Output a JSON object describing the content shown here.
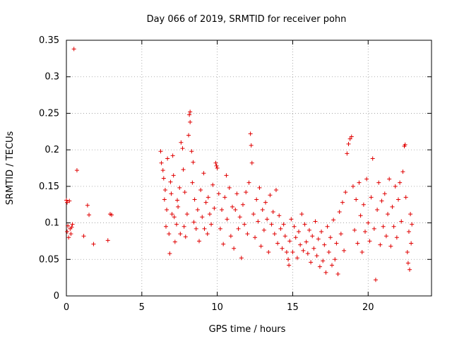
{
  "chart_data": {
    "type": "scatter",
    "title": "Day 066 of 2019, SRMTID for receiver pohn",
    "xlabel": "GPS time / hours",
    "ylabel": "SRMTID / TECUs",
    "xlim": [
      0,
      24.2
    ],
    "ylim": [
      0,
      0.35
    ],
    "x_ticks": [
      0,
      5,
      10,
      15,
      20
    ],
    "x_tick_labels": [
      "0",
      "5",
      "10",
      "15",
      "20"
    ],
    "y_ticks": [
      0,
      0.05,
      0.1,
      0.15,
      0.2,
      0.25,
      0.3,
      0.35
    ],
    "y_tick_labels": [
      "0",
      "0.05",
      "0.1",
      "0.15",
      "0.2",
      "0.25",
      "0.3",
      "0.35"
    ],
    "grid": true,
    "marker": "+",
    "color": "#e00000",
    "series": [
      {
        "name": "SRMTID",
        "points": [
          [
            0.0,
            0.131
          ],
          [
            0.05,
            0.128
          ],
          [
            0.05,
            0.088
          ],
          [
            0.1,
            0.096
          ],
          [
            0.15,
            0.08
          ],
          [
            0.2,
            0.13
          ],
          [
            0.25,
            0.092
          ],
          [
            0.3,
            0.085
          ],
          [
            0.35,
            0.094
          ],
          [
            0.4,
            0.098
          ],
          [
            0.5,
            0.338
          ],
          [
            0.7,
            0.172
          ],
          [
            1.15,
            0.082
          ],
          [
            1.4,
            0.124
          ],
          [
            1.5,
            0.111
          ],
          [
            1.8,
            0.071
          ],
          [
            2.75,
            0.076
          ],
          [
            2.9,
            0.112
          ],
          [
            3.0,
            0.111
          ],
          [
            6.25,
            0.198
          ],
          [
            6.3,
            0.182
          ],
          [
            6.4,
            0.172
          ],
          [
            6.45,
            0.161
          ],
          [
            6.5,
            0.132
          ],
          [
            6.55,
            0.145
          ],
          [
            6.6,
            0.095
          ],
          [
            6.65,
            0.118
          ],
          [
            6.7,
            0.188
          ],
          [
            6.8,
            0.085
          ],
          [
            6.85,
            0.058
          ],
          [
            6.9,
            0.156
          ],
          [
            6.95,
            0.14
          ],
          [
            7.0,
            0.112
          ],
          [
            7.05,
            0.192
          ],
          [
            7.1,
            0.165
          ],
          [
            7.15,
            0.108
          ],
          [
            7.2,
            0.074
          ],
          [
            7.3,
            0.098
          ],
          [
            7.35,
            0.131
          ],
          [
            7.4,
            0.122
          ],
          [
            7.5,
            0.148
          ],
          [
            7.55,
            0.085
          ],
          [
            7.6,
            0.21
          ],
          [
            7.7,
            0.202
          ],
          [
            7.75,
            0.173
          ],
          [
            7.8,
            0.095
          ],
          [
            7.85,
            0.142
          ],
          [
            7.9,
            0.081
          ],
          [
            8.0,
            0.112
          ],
          [
            8.1,
            0.22
          ],
          [
            8.15,
            0.248
          ],
          [
            8.2,
            0.238
          ],
          [
            8.2,
            0.252
          ],
          [
            8.3,
            0.198
          ],
          [
            8.35,
            0.155
          ],
          [
            8.4,
            0.183
          ],
          [
            8.45,
            0.101
          ],
          [
            8.5,
            0.132
          ],
          [
            8.6,
            0.092
          ],
          [
            8.7,
            0.118
          ],
          [
            8.8,
            0.075
          ],
          [
            8.9,
            0.145
          ],
          [
            9.0,
            0.108
          ],
          [
            9.1,
            0.168
          ],
          [
            9.15,
            0.092
          ],
          [
            9.25,
            0.128
          ],
          [
            9.35,
            0.085
          ],
          [
            9.4,
            0.135
          ],
          [
            9.5,
            0.112
          ],
          [
            9.6,
            0.098
          ],
          [
            9.7,
            0.152
          ],
          [
            9.8,
            0.12
          ],
          [
            9.9,
            0.182
          ],
          [
            9.95,
            0.178
          ],
          [
            10.0,
            0.175
          ],
          [
            10.1,
            0.14
          ],
          [
            10.2,
            0.092
          ],
          [
            10.3,
            0.118
          ],
          [
            10.4,
            0.071
          ],
          [
            10.5,
            0.135
          ],
          [
            10.6,
            0.165
          ],
          [
            10.65,
            0.105
          ],
          [
            10.8,
            0.148
          ],
          [
            10.9,
            0.082
          ],
          [
            11.0,
            0.122
          ],
          [
            11.1,
            0.065
          ],
          [
            11.2,
            0.118
          ],
          [
            11.3,
            0.14
          ],
          [
            11.4,
            0.092
          ],
          [
            11.5,
            0.108
          ],
          [
            11.6,
            0.052
          ],
          [
            11.7,
            0.125
          ],
          [
            11.8,
            0.098
          ],
          [
            11.9,
            0.142
          ],
          [
            12.0,
            0.085
          ],
          [
            12.1,
            0.155
          ],
          [
            12.2,
            0.222
          ],
          [
            12.25,
            0.206
          ],
          [
            12.3,
            0.182
          ],
          [
            12.4,
            0.112
          ],
          [
            12.5,
            0.08
          ],
          [
            12.6,
            0.132
          ],
          [
            12.7,
            0.102
          ],
          [
            12.8,
            0.148
          ],
          [
            12.9,
            0.068
          ],
          [
            13.0,
            0.118
          ],
          [
            13.1,
            0.09
          ],
          [
            13.2,
            0.128
          ],
          [
            13.3,
            0.105
          ],
          [
            13.4,
            0.06
          ],
          [
            13.5,
            0.138
          ],
          [
            13.6,
            0.098
          ],
          [
            13.7,
            0.115
          ],
          [
            13.8,
            0.085
          ],
          [
            13.9,
            0.145
          ],
          [
            14.0,
            0.072
          ],
          [
            14.1,
            0.11
          ],
          [
            14.2,
            0.092
          ],
          [
            14.3,
            0.065
          ],
          [
            14.4,
            0.098
          ],
          [
            14.5,
            0.082
          ],
          [
            14.6,
            0.06
          ],
          [
            14.7,
            0.05
          ],
          [
            14.75,
            0.042
          ],
          [
            14.8,
            0.075
          ],
          [
            14.9,
            0.105
          ],
          [
            15.0,
            0.06
          ],
          [
            15.1,
            0.095
          ],
          [
            15.2,
            0.08
          ],
          [
            15.3,
            0.052
          ],
          [
            15.4,
            0.088
          ],
          [
            15.5,
            0.07
          ],
          [
            15.6,
            0.112
          ],
          [
            15.7,
            0.062
          ],
          [
            15.8,
            0.098
          ],
          [
            15.9,
            0.074
          ],
          [
            16.0,
            0.058
          ],
          [
            16.1,
            0.09
          ],
          [
            16.2,
            0.046
          ],
          [
            16.3,
            0.082
          ],
          [
            16.4,
            0.065
          ],
          [
            16.5,
            0.102
          ],
          [
            16.6,
            0.055
          ],
          [
            16.7,
            0.078
          ],
          [
            16.8,
            0.04
          ],
          [
            16.9,
            0.088
          ],
          [
            17.0,
            0.048
          ],
          [
            17.1,
            0.07
          ],
          [
            17.2,
            0.032
          ],
          [
            17.3,
            0.095
          ],
          [
            17.4,
            0.06
          ],
          [
            17.5,
            0.08
          ],
          [
            17.6,
            0.042
          ],
          [
            17.7,
            0.104
          ],
          [
            17.8,
            0.05
          ],
          [
            17.9,
            0.072
          ],
          [
            18.0,
            0.03
          ],
          [
            18.1,
            0.115
          ],
          [
            18.2,
            0.085
          ],
          [
            18.3,
            0.128
          ],
          [
            18.4,
            0.062
          ],
          [
            18.5,
            0.142
          ],
          [
            18.6,
            0.195
          ],
          [
            18.7,
            0.208
          ],
          [
            18.8,
            0.215
          ],
          [
            18.9,
            0.218
          ],
          [
            19.0,
            0.15
          ],
          [
            19.1,
            0.09
          ],
          [
            19.2,
            0.132
          ],
          [
            19.3,
            0.072
          ],
          [
            19.4,
            0.155
          ],
          [
            19.5,
            0.11
          ],
          [
            19.6,
            0.06
          ],
          [
            19.7,
            0.125
          ],
          [
            19.8,
            0.088
          ],
          [
            19.9,
            0.16
          ],
          [
            20.0,
            0.1
          ],
          [
            20.1,
            0.075
          ],
          [
            20.2,
            0.135
          ],
          [
            20.3,
            0.188
          ],
          [
            20.4,
            0.092
          ],
          [
            20.5,
            0.022
          ],
          [
            20.6,
            0.118
          ],
          [
            20.7,
            0.155
          ],
          [
            20.8,
            0.07
          ],
          [
            20.9,
            0.13
          ],
          [
            21.0,
            0.095
          ],
          [
            21.1,
            0.14
          ],
          [
            21.2,
            0.082
          ],
          [
            21.3,
            0.112
          ],
          [
            21.4,
            0.16
          ],
          [
            21.5,
            0.068
          ],
          [
            21.6,
            0.122
          ],
          [
            21.7,
            0.095
          ],
          [
            21.8,
            0.15
          ],
          [
            21.9,
            0.08
          ],
          [
            22.0,
            0.132
          ],
          [
            22.1,
            0.155
          ],
          [
            22.2,
            0.102
          ],
          [
            22.3,
            0.17
          ],
          [
            22.4,
            0.205
          ],
          [
            22.45,
            0.207
          ],
          [
            22.5,
            0.135
          ],
          [
            22.6,
            0.06
          ],
          [
            22.65,
            0.045
          ],
          [
            22.7,
            0.088
          ],
          [
            22.75,
            0.036
          ],
          [
            22.8,
            0.112
          ],
          [
            22.85,
            0.072
          ],
          [
            22.9,
            0.098
          ]
        ]
      }
    ]
  }
}
